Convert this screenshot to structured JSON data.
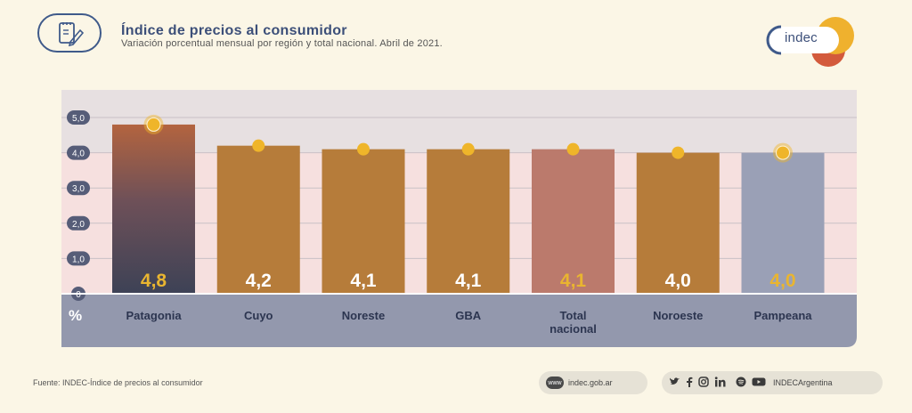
{
  "header": {
    "title": "Índice de precios al consumidor",
    "subtitle": "Variación porcentual mensual por región y total nacional. Abril de 2021.",
    "logo_text": "indec"
  },
  "chart_data": {
    "type": "bar",
    "categories": [
      "Patagonia",
      "Cuyo",
      "Noreste",
      "GBA",
      "Total nacional",
      "Noroeste",
      "Pampeana"
    ],
    "category_lines": [
      [
        "Patagonia"
      ],
      [
        "Cuyo"
      ],
      [
        "Noreste"
      ],
      [
        "GBA"
      ],
      [
        "Total",
        "nacional"
      ],
      [
        "Noroeste"
      ],
      [
        "Pampeana"
      ]
    ],
    "values": [
      4.8,
      4.2,
      4.1,
      4.1,
      4.1,
      4.0,
      4.0
    ],
    "value_labels": [
      "4,8",
      "4,2",
      "4,1",
      "4,1",
      "4,1",
      "4,0",
      "4,0"
    ],
    "yticks": [
      "0",
      "1,0",
      "2,0",
      "3,0",
      "4,0",
      "5,0"
    ],
    "ylim": [
      0,
      5.5
    ],
    "ylabel": "%",
    "grid": true,
    "colors": {
      "patagonia_top": "#b3643f",
      "patagonia_bottom": "#3d4256",
      "regional": "#b67c3a",
      "total": "#bb7a6c",
      "pampeana": "#9aa0b6",
      "marker": "#efb52a",
      "label_white": "#ffffff",
      "label_gold": "#e9b530",
      "axis_band": "#9398ad",
      "plot_upper": "#e7e0e1",
      "plot_lower": "#f6e0df"
    },
    "bar_styles": [
      "gradient",
      "regional",
      "regional",
      "regional",
      "total",
      "regional",
      "pampeana"
    ],
    "label_colors": [
      "gold",
      "white",
      "white",
      "white",
      "gold",
      "white",
      "gold"
    ],
    "marker_halo": [
      true,
      false,
      false,
      false,
      false,
      false,
      true
    ]
  },
  "footer": {
    "source": "Fuente: INDEC-Índice de precios al consumidor",
    "web_icon": "www",
    "website": "indec.gob.ar",
    "social_icons": [
      "twitter-icon",
      "facebook-icon",
      "instagram-icon",
      "linkedin-icon",
      "spotify-icon",
      "youtube-icon"
    ],
    "social_handle": "INDECArgentina"
  }
}
